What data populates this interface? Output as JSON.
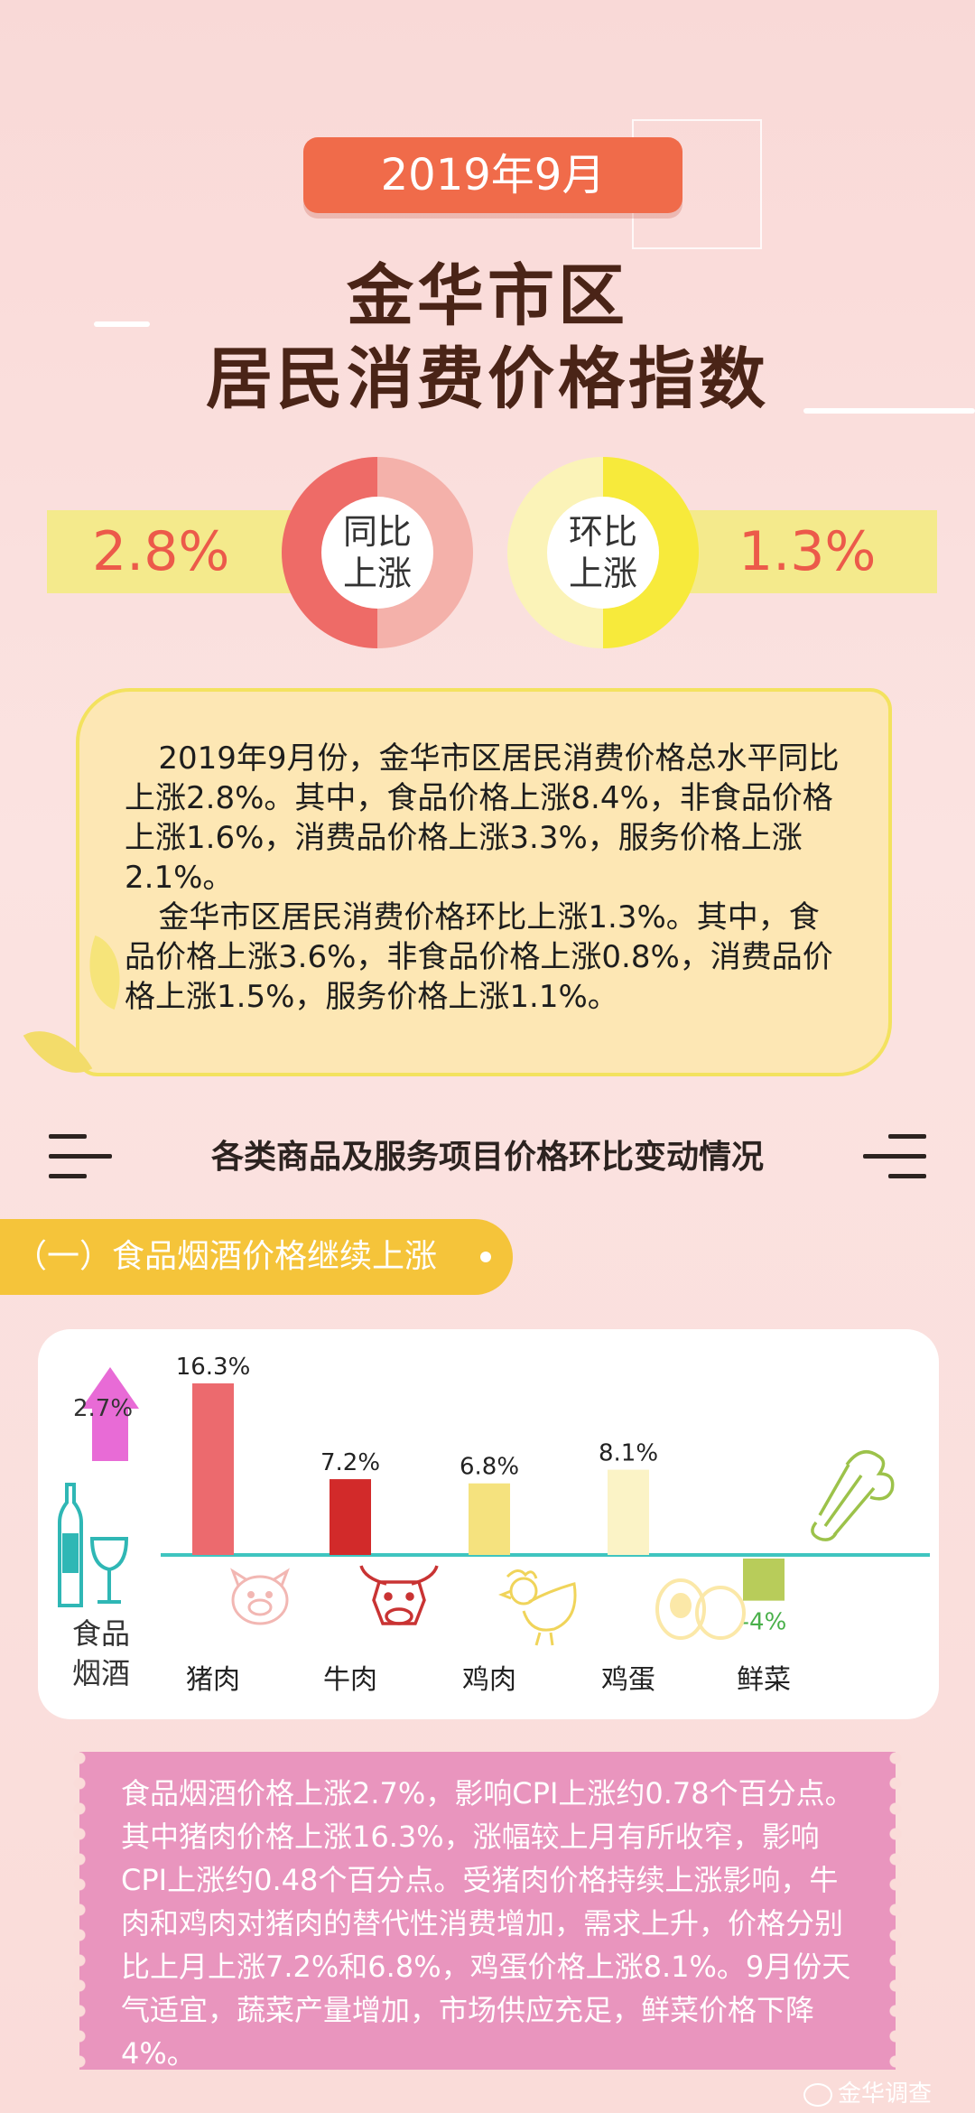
{
  "header": {
    "date": "2019年9月",
    "title_line1": "金华市区",
    "title_line2": "居民消费价格指数"
  },
  "rates": {
    "yoy": {
      "value": "2.8%",
      "label_line1": "同比",
      "label_line2": "上涨"
    },
    "mom": {
      "value": "1.3%",
      "label_line1": "环比",
      "label_line2": "上涨"
    }
  },
  "summary": {
    "para1": "2019年9月份，金华市区居民消费价格总水平同比上涨2.8%。其中，食品价格上涨8.4%，非食品价格上涨1.6%，消费品价格上涨3.3%，服务价格上涨2.1%。",
    "para2": "金华市区居民消费价格环比上涨1.3%。其中，食品价格上涨3.6%，非食品价格上涨0.8%，消费品价格上涨1.5%，服务价格上涨1.1%。"
  },
  "section": {
    "title": "各类商品及服务项目价格环比变动情况",
    "subsection": "（一）食品烟酒价格继续上涨"
  },
  "category": {
    "value_label": "2.7%",
    "name_line1": "食品",
    "name_line2": "烟酒"
  },
  "chart_data": {
    "type": "bar",
    "title": "",
    "xlabel": "",
    "ylabel": "",
    "categories": [
      "猪肉",
      "牛肉",
      "鸡肉",
      "鸡蛋",
      "鲜菜"
    ],
    "values": [
      16.3,
      7.2,
      6.8,
      8.1,
      -4
    ],
    "value_labels": [
      "16.3%",
      "7.2%",
      "6.8%",
      "8.1%",
      "-4%"
    ],
    "colors": [
      "#ec6a6e",
      "#d22a2a",
      "#f5e27e",
      "#fbf3c6",
      "#b8cc5a"
    ],
    "ylim": [
      -4,
      16.3
    ],
    "grid": false,
    "baseline_color": "#3fc5c0"
  },
  "note": {
    "text": "食品烟酒价格上涨2.7%，影响CPI上涨约0.78个百分点。其中猪肉价格上涨16.3%，涨幅较上月有所收窄，影响CPI上涨约0.48个百分点。受猪肉价格持续上涨影响，牛肉和鸡肉对猪肉的替代性消费增加，需求上升，价格分别比上月上涨7.2%和6.8%，鸡蛋价格上涨8.1%。9月份天气适宜，蔬菜产量增加，市场供应充足，鲜菜价格下降4%。"
  },
  "watermark": "金华调查",
  "icons": {
    "up_arrow": "up-arrow-icon",
    "wine": "wine-bottle-glass-icon",
    "pig": "pig-icon",
    "cow": "cow-icon",
    "chicken": "chicken-icon",
    "eggs": "eggs-icon",
    "celery": "celery-icon"
  }
}
